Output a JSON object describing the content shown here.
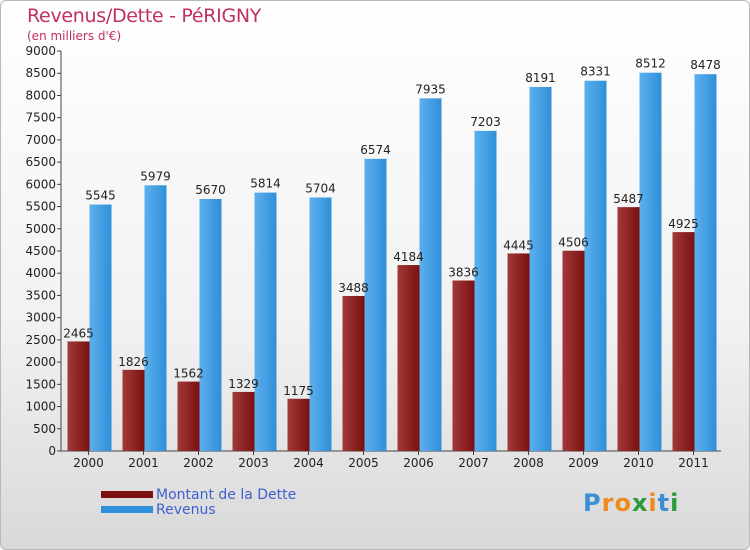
{
  "header": {
    "title": "Revenus/Dette - PéRIGNY",
    "subtitle": "(en milliers d'€)"
  },
  "legend": {
    "debt_label": "Montant de la Dette",
    "revenue_label": "Revenus"
  },
  "logo": {
    "text": "Proxiti",
    "letters": [
      "P",
      "r",
      "o",
      "x",
      "i",
      "t",
      "i"
    ],
    "colors": [
      "#3b8fd6",
      "#f08a1c",
      "#f08a1c",
      "#2a9a3a",
      "#f08a1c",
      "#3b8fd6",
      "#2a9a3a"
    ]
  },
  "colors": {
    "debt": "#7a1010",
    "debt_light": "#a23a3a",
    "revenue": "#2f8fd8",
    "revenue_light": "#5cb0ee"
  },
  "chart_data": {
    "type": "bar",
    "title": "Revenus/Dette - PéRIGNY",
    "ylabel": "(en milliers d'€)",
    "xlabel": "",
    "ylim": [
      0,
      9000
    ],
    "yticks": [
      0,
      500,
      1000,
      1500,
      2000,
      2500,
      3000,
      3500,
      4000,
      4500,
      5000,
      5500,
      6000,
      6500,
      7000,
      7500,
      8000,
      8500,
      9000
    ],
    "categories": [
      "2000",
      "2001",
      "2002",
      "2003",
      "2004",
      "2005",
      "2006",
      "2007",
      "2008",
      "2009",
      "2010",
      "2011"
    ],
    "series": [
      {
        "name": "Montant de la Dette",
        "values": [
          2465,
          1826,
          1562,
          1329,
          1175,
          3488,
          4184,
          3836,
          4445,
          4506,
          5487,
          4925
        ]
      },
      {
        "name": "Revenus",
        "values": [
          5545,
          5979,
          5670,
          5814,
          5704,
          6574,
          7935,
          7203,
          8191,
          8331,
          8512,
          8478
        ]
      }
    ],
    "legend": "bottom-left",
    "grid": false
  }
}
